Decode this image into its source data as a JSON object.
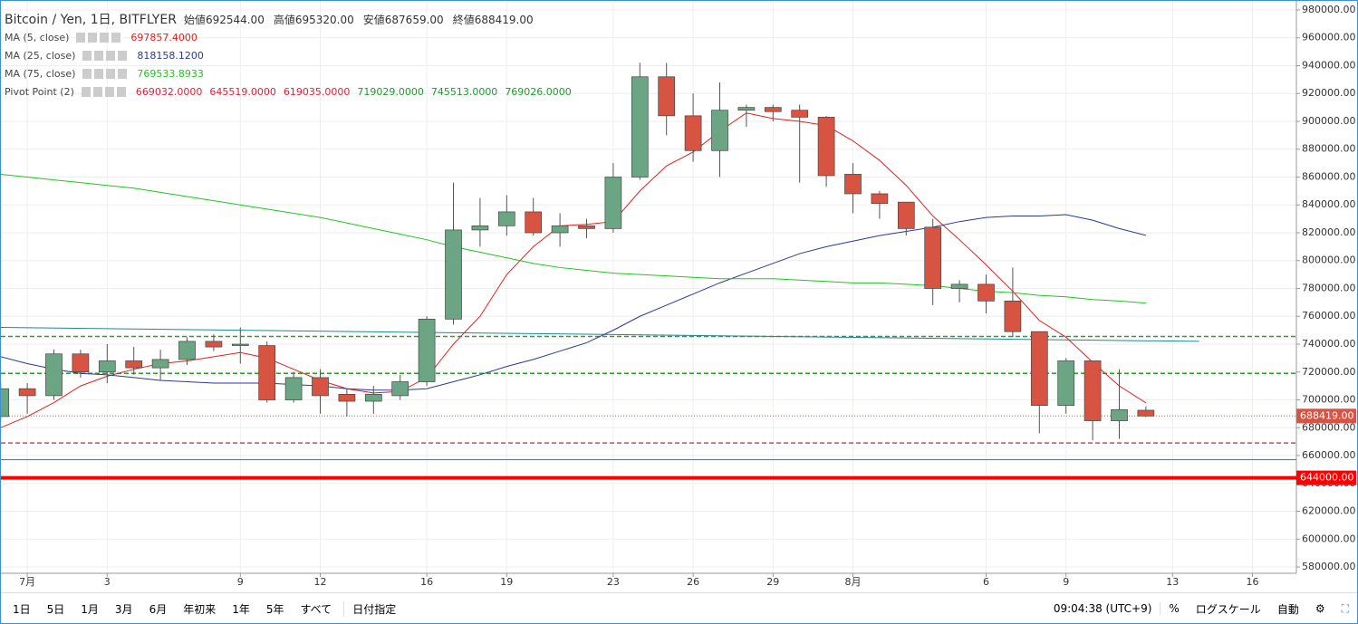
{
  "header": {
    "symbol": "Bitcoin / Yen, 1日, BITFLYER",
    "ohlc": [
      {
        "label": "始値",
        "value": "692544.00"
      },
      {
        "label": "高値",
        "value": "695320.00"
      },
      {
        "label": "安値",
        "value": "687659.00"
      },
      {
        "label": "終値",
        "value": "688419.00"
      }
    ]
  },
  "indicators": [
    {
      "name": "MA (5, close)",
      "colors": [
        "#e0201f"
      ],
      "values": [
        "697857.4000"
      ]
    },
    {
      "name": "MA (25, close)",
      "colors": [
        "#2b3a8f"
      ],
      "values": [
        "818158.1200"
      ]
    },
    {
      "name": "MA (75, close)",
      "colors": [
        "#22c322"
      ],
      "values": [
        "769533.8933"
      ]
    },
    {
      "name": "Pivot Point (2)",
      "colors": [
        "#e0203f",
        "#e0203f",
        "#e0203f",
        "#1f9b2b",
        "#1f9b2b",
        "#1f9b2b"
      ],
      "values": [
        "669032.0000",
        "645519.0000",
        "619035.0000",
        "719029.0000",
        "745513.0000",
        "769026.0000"
      ]
    }
  ],
  "chart_data": {
    "type": "candlestick",
    "up_color": "#6ba583",
    "down_color": "#d75442",
    "grid": true,
    "x": [
      -1,
      0,
      1,
      2,
      3,
      4,
      5,
      6,
      7,
      8,
      9,
      10,
      11,
      12,
      13,
      14,
      15,
      16,
      17,
      18,
      19,
      20,
      21,
      22,
      23,
      24,
      25,
      26,
      27,
      28,
      29,
      30,
      31,
      32,
      33,
      34,
      35,
      36,
      37,
      38,
      39,
      40,
      41,
      42
    ],
    "open": [
      688000,
      708000,
      703000,
      733000,
      720000,
      728000,
      723000,
      729000,
      742000,
      739000,
      739000,
      700000,
      716000,
      704000,
      699000,
      703000,
      713000,
      758000,
      822000,
      825000,
      835000,
      820000,
      825000,
      823000,
      860000,
      932000,
      904000,
      879000,
      908000,
      910000,
      908000,
      903000,
      862000,
      848000,
      842000,
      824000,
      780000,
      783000,
      771000,
      749000,
      696000,
      728000,
      685000,
      692544
    ],
    "high": [
      712000,
      712000,
      736000,
      736000,
      740000,
      738000,
      736000,
      745000,
      747000,
      752000,
      742000,
      720000,
      722000,
      708000,
      710000,
      718000,
      760000,
      856000,
      845000,
      847000,
      845000,
      834000,
      830000,
      870000,
      942000,
      942000,
      920000,
      928000,
      912000,
      912000,
      912000,
      904000,
      870000,
      850000,
      842000,
      830000,
      786000,
      790000,
      795000,
      749000,
      730000,
      728000,
      722000,
      695320
    ],
    "low": [
      685000,
      690000,
      700000,
      716000,
      712000,
      718000,
      714000,
      725000,
      735000,
      726000,
      698000,
      698000,
      690000,
      688000,
      690000,
      700000,
      710000,
      754000,
      810000,
      818000,
      818000,
      810000,
      816000,
      820000,
      858000,
      890000,
      871000,
      860000,
      896000,
      900000,
      856000,
      853000,
      834000,
      830000,
      818000,
      768000,
      770000,
      762000,
      745000,
      676000,
      690000,
      671000,
      672000,
      687659
    ],
    "close": [
      708000,
      703000,
      733000,
      720000,
      728000,
      723000,
      729000,
      742000,
      738000,
      740000,
      700000,
      716000,
      703000,
      699000,
      704000,
      713000,
      758000,
      822000,
      825000,
      835000,
      820000,
      825000,
      823000,
      860000,
      932000,
      904000,
      879000,
      908000,
      910000,
      907000,
      903000,
      861000,
      848000,
      841000,
      823000,
      780000,
      783000,
      771000,
      749000,
      696000,
      728000,
      685000,
      693000,
      688419
    ],
    "lines": [
      {
        "color": "#e0201f",
        "values": [
          680000,
          688000,
          698000,
          710000,
          717000,
          722000,
          726000,
          728000,
          731000,
          734000,
          730000,
          722000,
          714000,
          708000,
          705000,
          706000,
          716000,
          740000,
          760000,
          790000,
          810000,
          825000,
          826000,
          828000,
          850000,
          868000,
          878000,
          893000,
          906000,
          902000,
          900000,
          897000,
          886000,
          872000,
          854000,
          832000,
          815000,
          797000,
          778000,
          757000,
          745000,
          727000,
          710000,
          697857.4
        ]
      },
      {
        "color": "#2b3a8f",
        "values": [
          731000,
          726000,
          722000,
          719000,
          718000,
          716000,
          714000,
          713000,
          712000,
          712000,
          712000,
          711000,
          710000,
          708000,
          707000,
          707000,
          708000,
          713000,
          718000,
          724000,
          729000,
          735000,
          741000,
          750000,
          760000,
          768000,
          776000,
          784000,
          791000,
          798000,
          805000,
          810000,
          814000,
          818000,
          821000,
          824000,
          828000,
          831000,
          832000,
          832000,
          833000,
          829000,
          823000,
          818158.12
        ]
      },
      {
        "color": "#22c322",
        "values": [
          862000,
          860000,
          858000,
          856000,
          854000,
          852000,
          849000,
          846000,
          843000,
          840000,
          837000,
          834000,
          831000,
          827000,
          823000,
          819000,
          815000,
          810000,
          806000,
          802000,
          798000,
          795000,
          793000,
          791000,
          790000,
          789000,
          788000,
          787000,
          787000,
          787000,
          786000,
          785000,
          784000,
          784000,
          783000,
          782000,
          780000,
          778000,
          777000,
          775000,
          774000,
          772000,
          771000,
          769533.8933
        ]
      }
    ],
    "levels": [
      {
        "value": 657000,
        "color": "#3a6fb0",
        "style": "solid"
      },
      {
        "value": 669032,
        "color": "#e04050",
        "style": "dashed"
      },
      {
        "value": 719029,
        "color": "#2aa02a",
        "style": "dashed"
      },
      {
        "value": 745513,
        "color": "#2aa02a",
        "style": "dashed"
      },
      {
        "value": 688419,
        "color": "#d75442",
        "style": "dotted",
        "label": "688419.00"
      },
      {
        "value": 644000,
        "color": "#ff0000",
        "style": "thick",
        "label": "644000.00"
      }
    ],
    "trendline": {
      "color": "#1d8a8a",
      "x": [
        -1,
        44
      ],
      "values": [
        752000,
        742000
      ]
    },
    "xlim": [
      -0.99,
      47.65
    ],
    "ylim": [
      575450,
      986500
    ],
    "xticks": [
      {
        "value": 0,
        "label": "7月"
      },
      3,
      {
        "value": 8,
        "label": "9"
      },
      {
        "value": 11,
        "label": "12"
      },
      {
        "value": 15,
        "label": "16"
      },
      {
        "value": 18,
        "label": "19"
      },
      {
        "value": 22,
        "label": "23"
      },
      {
        "value": 25,
        "label": "26"
      },
      {
        "value": 28,
        "label": "29"
      },
      {
        "value": 31,
        "label": "8月"
      },
      {
        "value": 36,
        "label": "6"
      },
      {
        "value": 39,
        "label": "9"
      },
      {
        "value": 43,
        "label": "13"
      },
      {
        "value": 46,
        "label": "16"
      }
    ],
    "yticks": [
      {
        "value": 580000,
        "label": "580000.00"
      },
      {
        "value": 600000,
        "label": "600000.00"
      },
      {
        "value": 620000,
        "label": "620000.00"
      },
      {
        "value": 640000,
        "label": "640000.00"
      },
      {
        "value": 660000,
        "label": "660000.00"
      },
      {
        "value": 680000,
        "label": "680000.00"
      },
      {
        "value": 700000,
        "label": "700000.00"
      },
      {
        "value": 720000,
        "label": "720000.00"
      },
      {
        "value": 740000,
        "label": "740000.00"
      },
      {
        "value": 760000,
        "label": "760000.00"
      },
      {
        "value": 780000,
        "label": "780000.00"
      },
      {
        "value": 800000,
        "label": "800000.00"
      },
      {
        "value": 820000,
        "label": "820000.00"
      },
      {
        "value": 840000,
        "label": "840000.00"
      },
      {
        "value": 860000,
        "label": "860000.00"
      },
      {
        "value": 880000,
        "label": "880000.00"
      },
      {
        "value": 900000,
        "label": "900000.00"
      },
      {
        "value": 920000,
        "label": "920000.00"
      },
      {
        "value": 940000,
        "label": "940000.00"
      },
      {
        "value": 960000,
        "label": "960000.00"
      },
      {
        "value": 980000,
        "label": "980000.00"
      }
    ]
  },
  "toolbar": {
    "ranges": [
      "1日",
      "5日",
      "1月",
      "3月",
      "6月",
      "年初来",
      "1年",
      "5年",
      "すべて"
    ],
    "date_button": "日付指定",
    "clock": "09:04:38 (UTC+9)",
    "percent": "%",
    "log": "ログスケール",
    "auto": "自動"
  }
}
